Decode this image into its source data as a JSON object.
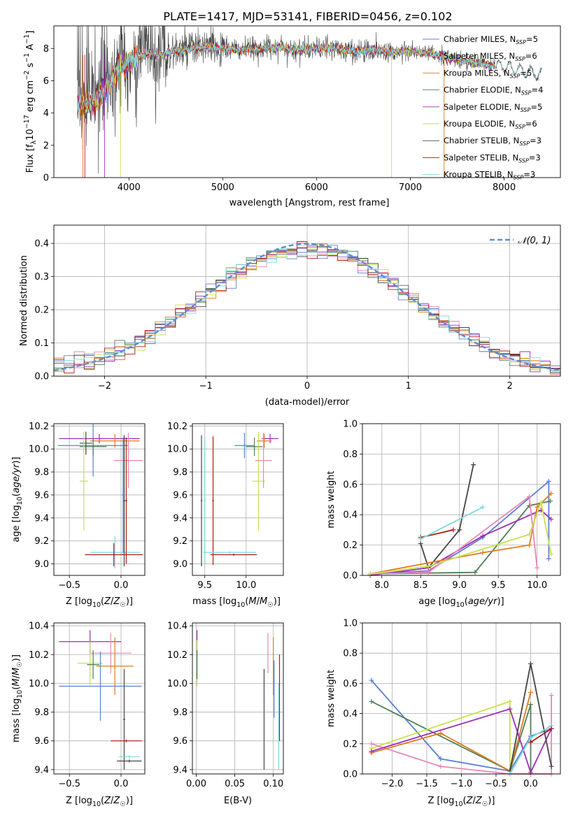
{
  "chart_data": [
    {
      "type": "line",
      "title": "PLATE=1417, MJD=53141, FIBERID=0456, z=0.102",
      "xlabel": "wavelength [Angstrom, rest frame]",
      "ylabel_parts": [
        "Flux [f",
        "λ",
        "10",
        "−17",
        " erg cm",
        "−2",
        " s",
        "−1",
        " A",
        "−1",
        "]"
      ],
      "xlim": [
        3200,
        8600
      ],
      "ylim": [
        0,
        9.4
      ],
      "xticks": [
        4000,
        5000,
        6000,
        7000,
        8000
      ],
      "yticks": [
        0,
        2,
        4,
        6,
        8
      ],
      "grid": false,
      "legend_position": "right",
      "series": [
        {
          "name": "Chabrier MILES",
          "nssp": "5",
          "color": "#5b7fd6"
        },
        {
          "name": "Salpeter MILES",
          "nssp": "6",
          "color": "#e986b7"
        },
        {
          "name": "Kroupa MILES",
          "nssp": "5",
          "color": "#e07b1f"
        },
        {
          "name": "Chabrier ELODIE",
          "nssp": "4",
          "color": "#4f7f56"
        },
        {
          "name": "Salpeter ELODIE",
          "nssp": "5",
          "color": "#9b30b5"
        },
        {
          "name": "Kroupa ELODIE",
          "nssp": "6",
          "color": "#c9e14a"
        },
        {
          "name": "Chabrier STELIB",
          "nssp": "3",
          "color": "#444444"
        },
        {
          "name": "Salpeter STELIB",
          "nssp": "3",
          "color": "#b01c12"
        },
        {
          "name": "Kroupa STELIB",
          "nssp": "3",
          "color": "#82d6e0"
        }
      ],
      "spectrum_anchors": {
        "x": [
          3450,
          3550,
          3650,
          3750,
          3850,
          3950,
          4050,
          4150,
          4250,
          4350,
          4450,
          4600,
          4800,
          5000,
          5200,
          5400,
          5600,
          5800,
          6000,
          6200,
          6400,
          6600,
          6800,
          7000,
          7200,
          7400,
          7600,
          7800,
          8000,
          8200,
          8400
        ],
        "y": [
          4.5,
          4.6,
          4.8,
          5.5,
          6.4,
          6.9,
          7.4,
          7.6,
          7.7,
          7.6,
          7.8,
          7.9,
          8.1,
          8.0,
          7.9,
          8.0,
          8.1,
          7.9,
          8.0,
          8.0,
          7.8,
          7.9,
          7.8,
          7.8,
          7.7,
          7.4,
          7.2,
          7.0,
          6.9,
          6.6,
          6.4
        ]
      }
    },
    {
      "type": "bar",
      "xlabel": "(data-model)/error",
      "ylabel": "Normed distribution",
      "xlim": [
        -2.5,
        2.5
      ],
      "ylim": [
        0,
        0.455
      ],
      "xticks": [
        -2,
        -1,
        0,
        1,
        2
      ],
      "yticks": [
        0.0,
        0.1,
        0.2,
        0.3,
        0.4
      ],
      "grid": true,
      "legend_position": "top-right",
      "legend": "𝒩(0, 1)",
      "reference_curve": {
        "mean": 0,
        "sigma": 1,
        "color": "#5b8bd8"
      },
      "bin_width": 0.1,
      "bin_start": -2.5
    },
    {
      "type": "scatter",
      "xlabel": "Z [log10(Z/Z☉)]",
      "xlabel_parts": [
        "Z [log",
        "10",
        "(",
        "Z",
        "/",
        "Z",
        "☉",
        ")]"
      ],
      "ylabel_parts": [
        "age  [log",
        "10",
        "(",
        "age/yr",
        ")]"
      ],
      "xlim": [
        -0.65,
        0.23
      ],
      "ylim": [
        8.9,
        10.22
      ],
      "xticks": [
        -0.5,
        0.0
      ],
      "yticks": [
        9.0,
        9.2,
        9.4,
        9.6,
        9.8,
        10.0,
        10.2
      ],
      "grid": true,
      "errorbars": [
        {
          "color": "#9b30b5",
          "x": -0.21,
          "xerr": 0.39,
          "y": 10.09,
          "yerr": 0.04
        },
        {
          "color": "#e07b1f",
          "x": -0.06,
          "xerr": 0.24,
          "y": 10.07,
          "yerr": 0.06
        },
        {
          "color": "#5b7fd6",
          "x": -0.27,
          "xerr": 0.34,
          "y": 10.03,
          "yerr": 0.27
        },
        {
          "color": "#4f7f56",
          "x": -0.27,
          "xerr": 0.13,
          "y": 10.02,
          "yerr": 0.08
        },
        {
          "color": "#444444",
          "x": -0.34,
          "xerr": 0.06,
          "y": 10.05,
          "yerr": 0.1
        },
        {
          "color": "#c9e14a",
          "x": -0.36,
          "xerr": 0.04,
          "y": 9.72,
          "yerr": 0.43
        },
        {
          "color": "#e986b7",
          "x": 0.07,
          "xerr": 0.14,
          "y": 9.9,
          "yerr": 0.24
        },
        {
          "color": "#82d6e0",
          "x": -0.06,
          "xerr": 0.24,
          "y": 9.1,
          "yerr": 0.14
        },
        {
          "color": "#b01c12",
          "x": -0.07,
          "xerr": 0.28,
          "y": 9.08,
          "yerr": 0.1
        },
        {
          "color": "#444444",
          "x": 0.03,
          "xerr": 0.01,
          "y": 9.55,
          "yerr": 0.57
        },
        {
          "color": "#b01c12",
          "x": 0.05,
          "xerr": 0.01,
          "y": 9.55,
          "yerr": 0.55
        },
        {
          "color": "#5b7fd6",
          "x": 0.02,
          "xerr": 0.01,
          "y": 9.6,
          "yerr": 0.5
        }
      ]
    },
    {
      "type": "scatter",
      "xlabel_parts": [
        "mass [log",
        "10",
        "(",
        "M",
        "/",
        "M",
        "☉",
        ")]"
      ],
      "xlim": [
        9.35,
        10.45
      ],
      "ylim": [
        8.9,
        10.22
      ],
      "xticks": [
        9.5,
        10.0
      ],
      "yticks": [
        9.0,
        9.2,
        9.4,
        9.6,
        9.8,
        10.0,
        10.2
      ],
      "grid": true,
      "errorbars": [
        {
          "color": "#9b30b5",
          "x": 10.29,
          "xerr": 0.1,
          "y": 10.09,
          "yerr": 0.04
        },
        {
          "color": "#e07b1f",
          "x": 10.22,
          "xerr": 0.09,
          "y": 10.07,
          "yerr": 0.06
        },
        {
          "color": "#5b7fd6",
          "x": 9.98,
          "xerr": 0.12,
          "y": 10.03,
          "yerr": 0.11
        },
        {
          "color": "#4f7f56",
          "x": 10.1,
          "xerr": 0.1,
          "y": 10.02,
          "yerr": 0.08
        },
        {
          "color": "#c9e14a",
          "x": 10.15,
          "xerr": 0.08,
          "y": 9.72,
          "yerr": 0.43
        },
        {
          "color": "#e986b7",
          "x": 10.21,
          "xerr": 0.1,
          "y": 9.9,
          "yerr": 0.24
        },
        {
          "color": "#444444",
          "x": 9.46,
          "xerr": 0.01,
          "y": 9.55,
          "yerr": 0.57
        },
        {
          "color": "#82d6e0",
          "x": 9.5,
          "xerr": 0.01,
          "y": 9.55,
          "yerr": 0.55
        },
        {
          "color": "#b01c12",
          "x": 9.6,
          "xerr": 0.01,
          "y": 9.55,
          "yerr": 0.56
        },
        {
          "color": "#82d6e0",
          "x": 9.8,
          "xerr": 0.32,
          "y": 9.1,
          "yerr": 0.01
        },
        {
          "color": "#b01c12",
          "x": 9.85,
          "xerr": 0.28,
          "y": 9.08,
          "yerr": 0.01
        }
      ]
    },
    {
      "type": "line",
      "xlabel_parts": [
        "age  [log",
        "10",
        "(",
        "age/yr",
        ")]"
      ],
      "ylabel": "mass weight",
      "xlim": [
        7.75,
        10.3
      ],
      "ylim": [
        0,
        1.0
      ],
      "xticks": [
        8.0,
        8.5,
        9.0,
        9.5,
        10.0
      ],
      "yticks": [
        0.0,
        0.2,
        0.4,
        0.6,
        0.8,
        1.0
      ],
      "grid": true,
      "series": [
        {
          "color": "#444444",
          "x": [
            8.5,
            8.6,
            9.0,
            9.18
          ],
          "y": [
            0.21,
            0.05,
            0.3,
            0.73
          ]
        },
        {
          "color": "#b01c12",
          "x": [
            8.5,
            8.92
          ],
          "y": [
            0.25,
            0.3
          ]
        },
        {
          "color": "#82d6e0",
          "x": [
            8.5,
            9.3
          ],
          "y": [
            0.24,
            0.45
          ]
        },
        {
          "color": "#5b7fd6",
          "x": [
            7.85,
            8.6,
            9.3,
            10.15,
            10.15
          ],
          "y": [
            0.01,
            0.03,
            0.25,
            0.62,
            0.11
          ]
        },
        {
          "color": "#4f7f56",
          "x": [
            7.85,
            9.2,
            9.9,
            10.17
          ],
          "y": [
            0.01,
            0.02,
            0.46,
            0.49
          ]
        },
        {
          "color": "#9b30b5",
          "x": [
            7.85,
            8.6,
            9.3,
            10.05,
            10.18
          ],
          "y": [
            0.0,
            0.05,
            0.26,
            0.43,
            0.37
          ]
        },
        {
          "color": "#e07b1f",
          "x": [
            7.85,
            9.3,
            9.9,
            10.0,
            10.18
          ],
          "y": [
            0.01,
            0.15,
            0.2,
            0.45,
            0.54
          ]
        },
        {
          "color": "#e986b7",
          "x": [
            7.85,
            8.6,
            9.9,
            10.0
          ],
          "y": [
            0.01,
            0.02,
            0.52,
            0.05
          ]
        },
        {
          "color": "#c9e14a",
          "x": [
            7.85,
            8.6,
            9.9,
            10.05,
            10.18
          ],
          "y": [
            0.01,
            0.06,
            0.27,
            0.48,
            0.14
          ]
        }
      ]
    },
    {
      "type": "scatter",
      "xlabel_parts": [
        "Z [log",
        "10",
        "(",
        "Z",
        "/",
        "Z",
        "☉",
        ")]"
      ],
      "ylabel_parts": [
        "mass [log",
        "10",
        "(",
        "M",
        "/",
        "M",
        "☉",
        ")]"
      ],
      "xlim": [
        -0.65,
        0.23
      ],
      "ylim": [
        9.37,
        10.42
      ],
      "xticks": [
        -0.5,
        0.0
      ],
      "yticks": [
        9.4,
        9.6,
        9.8,
        10.0,
        10.2,
        10.4
      ],
      "grid": true,
      "errorbars": [
        {
          "color": "#9b30b5",
          "x": -0.3,
          "xerr": 0.3,
          "y": 10.29,
          "yerr": 0.08
        },
        {
          "color": "#e986b7",
          "x": -0.1,
          "xerr": 0.2,
          "y": 10.21,
          "yerr": 0.14
        },
        {
          "color": "#c9e14a",
          "x": -0.3,
          "xerr": 0.12,
          "y": 10.14,
          "yerr": 0.15
        },
        {
          "color": "#4f7f56",
          "x": -0.27,
          "xerr": 0.06,
          "y": 10.13,
          "yerr": 0.1
        },
        {
          "color": "#e07b1f",
          "x": -0.06,
          "xerr": 0.18,
          "y": 10.12,
          "yerr": 0.2
        },
        {
          "color": "#5b7fd6",
          "x": -0.2,
          "xerr": 0.4,
          "y": 9.98,
          "yerr": 0.24
        },
        {
          "color": "#444444",
          "x": 0.03,
          "xerr": 0.01,
          "y": 9.75,
          "yerr": 0.35
        },
        {
          "color": "#b01c12",
          "x": 0.05,
          "xerr": 0.15,
          "y": 9.6,
          "yerr": 0.01
        },
        {
          "color": "#82d6e0",
          "x": 0.08,
          "xerr": 0.1,
          "y": 9.49,
          "yerr": 0.01
        },
        {
          "color": "#444444",
          "x": 0.08,
          "xerr": 0.12,
          "y": 9.46,
          "yerr": 0.01
        }
      ]
    },
    {
      "type": "scatter",
      "xlabel": "E(B-V)",
      "xlim": [
        -0.005,
        0.113
      ],
      "ylim": [
        9.37,
        10.42
      ],
      "xticks": [
        0.0,
        0.05,
        0.1
      ],
      "yticks": [
        9.4,
        9.6,
        9.8,
        10.0,
        10.2,
        10.4
      ],
      "grid": true,
      "errorbars": [
        {
          "color": "#9b30b5",
          "x": 0.001,
          "xerr": 0.0,
          "y": 10.29,
          "yerr": 0.08
        },
        {
          "color": "#c9e14a",
          "x": 0.001,
          "xerr": 0.0,
          "y": 10.14,
          "yerr": 0.16
        },
        {
          "color": "#4f7f56",
          "x": 0.001,
          "xerr": 0.0,
          "y": 10.13,
          "yerr": 0.1
        },
        {
          "color": "#e986b7",
          "x": 0.093,
          "xerr": 0.0,
          "y": 10.21,
          "yerr": 0.14
        },
        {
          "color": "#e07b1f",
          "x": 0.1,
          "xerr": 0.0,
          "y": 10.12,
          "yerr": 0.2
        },
        {
          "color": "#444444",
          "x": 0.088,
          "xerr": 0.0,
          "y": 9.75,
          "yerr": 0.35
        },
        {
          "color": "#5b7fd6",
          "x": 0.101,
          "xerr": 0.0,
          "y": 9.96,
          "yerr": 0.2
        },
        {
          "color": "#b01c12",
          "x": 0.108,
          "xerr": 0.0,
          "y": 9.9,
          "yerr": 0.3
        },
        {
          "color": "#82d6e0",
          "x": 0.107,
          "xerr": 0.0,
          "y": 9.7,
          "yerr": 0.3
        }
      ]
    },
    {
      "type": "line",
      "xlabel_parts": [
        "Z [log",
        "10",
        "(",
        "Z",
        "/",
        "Z",
        "☉",
        ")]"
      ],
      "ylabel": "mass weight",
      "xlim": [
        -2.43,
        0.43
      ],
      "ylim": [
        0,
        1.0
      ],
      "xticks": [
        -2.0,
        -1.5,
        -1.0,
        -0.5,
        0.0
      ],
      "yticks": [
        0.0,
        0.2,
        0.4,
        0.6,
        0.8,
        1.0
      ],
      "grid": true,
      "series": [
        {
          "color": "#5b7fd6",
          "x": [
            -2.3,
            -1.3,
            -0.3,
            0.0,
            0.3
          ],
          "y": [
            0.62,
            0.1,
            0.02,
            0.25,
            0.3
          ]
        },
        {
          "color": "#4f7f56",
          "x": [
            -2.3,
            -0.3,
            0.0,
            0.0
          ],
          "y": [
            0.48,
            0.02,
            0.46,
            0.0
          ]
        },
        {
          "color": "#c9e14a",
          "x": [
            -2.3,
            -0.3,
            -0.3,
            0.0
          ],
          "y": [
            0.17,
            0.48,
            0.0,
            0.0
          ]
        },
        {
          "color": "#e986b7",
          "x": [
            -2.3,
            -1.3,
            -0.3,
            0.3,
            0.3
          ],
          "y": [
            0.2,
            0.05,
            0.0,
            0.0,
            0.52
          ]
        },
        {
          "color": "#e07b1f",
          "x": [
            -2.3,
            -1.3,
            -0.3,
            0.0
          ],
          "y": [
            0.14,
            0.27,
            0.02,
            0.54
          ]
        },
        {
          "color": "#9b30b5",
          "x": [
            -2.3,
            -0.3,
            0.0,
            0.3
          ],
          "y": [
            0.15,
            0.43,
            0.01,
            0.3
          ]
        },
        {
          "color": "#444444",
          "x": [
            -0.3,
            0.0,
            0.3
          ],
          "y": [
            0.02,
            0.73,
            0.05
          ]
        },
        {
          "color": "#82d6e0",
          "x": [
            -0.3,
            0.0,
            0.3
          ],
          "y": [
            0.0,
            0.24,
            0.32
          ]
        },
        {
          "color": "#b01c12",
          "x": [
            0.0,
            0.3
          ],
          "y": [
            0.21,
            0.3
          ]
        }
      ]
    }
  ]
}
